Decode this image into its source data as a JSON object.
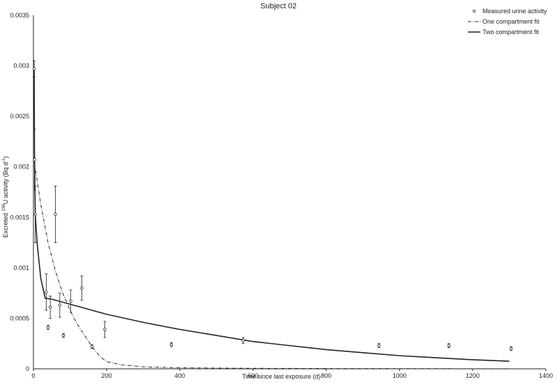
{
  "chart_data": {
    "type": "scatter",
    "title": "Subject 02",
    "xlabel": "Time since last exposure (d)",
    "ylabel_prefix": "Excreted ",
    "ylabel_sup": "238",
    "ylabel_mid": "U activity (Bq d",
    "ylabel_sup2": "-1",
    "ylabel_suffix": ")",
    "xlim": [
      0,
      1400
    ],
    "ylim": [
      0,
      0.0035
    ],
    "x_ticks": [
      "0",
      "200",
      "400",
      "600",
      "800",
      "1000",
      "1200",
      "1400"
    ],
    "y_ticks": [
      "0",
      "0.0005",
      "0.001",
      "0.0015",
      "0.002",
      "0.0025",
      "0.003",
      "0.0035"
    ],
    "grid": false,
    "legend_position": "top-right",
    "series": [
      {
        "name": "Measured urine activity",
        "kind": "points",
        "points": [
          {
            "x": 2,
            "y": 0.00297,
            "err": 8e-05
          },
          {
            "x": 3,
            "y": 0.00207,
            "err": 0.0003
          },
          {
            "x": 5,
            "y": 0.00153,
            "err": 0.00028
          },
          {
            "x": 35,
            "y": 0.00076,
            "err": 0.00018
          },
          {
            "x": 40,
            "y": 0.00041,
            "err": 2e-05
          },
          {
            "x": 46,
            "y": 0.00061,
            "err": 0.00011
          },
          {
            "x": 60,
            "y": 0.00153,
            "err": 0.00028
          },
          {
            "x": 72,
            "y": 0.00063,
            "err": 0.00012
          },
          {
            "x": 82,
            "y": 0.00033,
            "err": 2e-05
          },
          {
            "x": 102,
            "y": 0.00067,
            "err": 0.00011
          },
          {
            "x": 132,
            "y": 0.0008,
            "err": 0.00012
          },
          {
            "x": 160,
            "y": 0.00022,
            "err": 2e-05
          },
          {
            "x": 195,
            "y": 0.00039,
            "err": 8e-05
          },
          {
            "x": 377,
            "y": 0.00024,
            "err": 2e-05
          },
          {
            "x": 573,
            "y": 0.00028,
            "err": 3e-05
          },
          {
            "x": 944,
            "y": 0.00023,
            "err": 2e-05
          },
          {
            "x": 1135,
            "y": 0.00023,
            "err": 2e-05
          },
          {
            "x": 1305,
            "y": 0.0002,
            "err": 2e-05
          }
        ]
      },
      {
        "name": "One compartment fit",
        "kind": "dashdot",
        "x": [
          0,
          20,
          40,
          60,
          80,
          100,
          120,
          140,
          160,
          180,
          200,
          240,
          300,
          400,
          600,
          800,
          1000,
          1200,
          1300
        ],
        "y": [
          0.0021,
          0.00163,
          0.00125,
          0.00097,
          0.00075,
          0.00058,
          0.00044,
          0.00033,
          0.00022,
          0.00013,
          7e-05,
          4e-05,
          2e-05,
          1e-05,
          5e-06,
          3e-06,
          2e-06,
          1e-06,
          1e-06
        ]
      },
      {
        "name": "Two compartment fit",
        "kind": "solid",
        "x": [
          2,
          3,
          5,
          10,
          20,
          32,
          50,
          100,
          150,
          200,
          300,
          400,
          500,
          600,
          700,
          800,
          900,
          1000,
          1100,
          1200,
          1300
        ],
        "y": [
          0.00297,
          0.00207,
          0.00153,
          0.00125,
          0.0009,
          0.0007,
          0.00069,
          0.00064,
          0.00059,
          0.00054,
          0.00046,
          0.00039,
          0.00033,
          0.00027,
          0.00023,
          0.00019,
          0.00016,
          0.00013,
          0.00011,
          9e-05,
          7.5e-05
        ]
      }
    ]
  }
}
